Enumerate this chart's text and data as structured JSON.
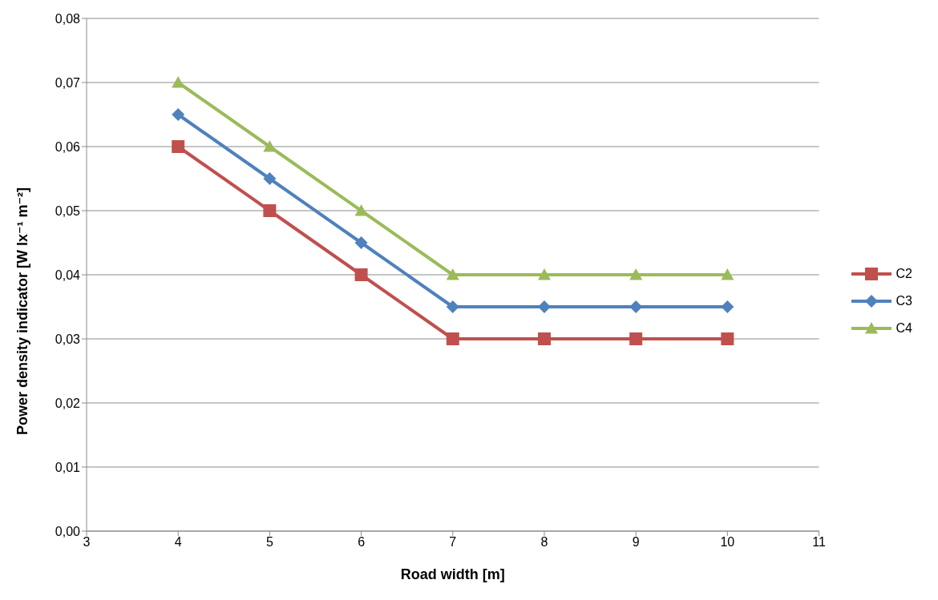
{
  "chart_data": {
    "type": "line",
    "xlabel": "Road width [m]",
    "ylabel": "Power density indicator [W lx⁻¹ m⁻²]",
    "x": [
      4,
      5,
      6,
      7,
      8,
      9,
      10
    ],
    "series": [
      {
        "name": "C2",
        "color": "#c0504d",
        "marker": "square",
        "values": [
          0.06,
          0.05,
          0.04,
          0.03,
          0.03,
          0.03,
          0.03
        ]
      },
      {
        "name": "C3",
        "color": "#4f81bd",
        "marker": "diamond",
        "values": [
          0.065,
          0.055,
          0.045,
          0.035,
          0.035,
          0.035,
          0.035
        ]
      },
      {
        "name": "C4",
        "color": "#9bbb59",
        "marker": "triangle",
        "values": [
          0.07,
          0.06,
          0.05,
          0.04,
          0.04,
          0.04,
          0.04
        ]
      }
    ],
    "xlim": [
      3,
      11
    ],
    "xticks": [
      3,
      4,
      5,
      6,
      7,
      8,
      9,
      10,
      11
    ],
    "ylim": [
      0,
      0.08
    ],
    "yticks": [
      {
        "value": 0,
        "label": "0,00"
      },
      {
        "value": 0.01,
        "label": "0,01"
      },
      {
        "value": 0.02,
        "label": "0,02"
      },
      {
        "value": 0.03,
        "label": "0,03"
      },
      {
        "value": 0.04,
        "label": "0,04"
      },
      {
        "value": 0.05,
        "label": "0,05"
      },
      {
        "value": 0.06,
        "label": "0,06"
      },
      {
        "value": 0.07,
        "label": "0,07"
      },
      {
        "value": 0.08,
        "label": "0,08"
      }
    ],
    "grid": "y",
    "legend": "right"
  }
}
